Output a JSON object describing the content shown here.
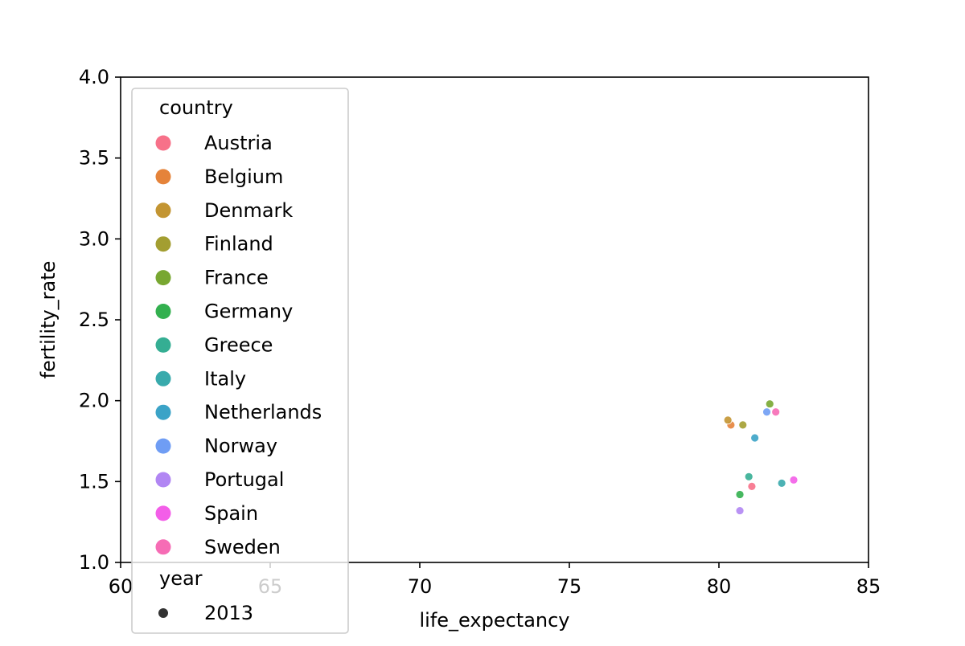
{
  "chart_data": {
    "type": "scatter",
    "xlabel": "life_expectancy",
    "ylabel": "fertility_rate",
    "xlim": [
      60,
      85
    ],
    "ylim": [
      1.0,
      4.0
    ],
    "xticks": [
      "60",
      "65",
      "70",
      "75",
      "80",
      "85"
    ],
    "yticks": [
      "1.0",
      "1.5",
      "2.0",
      "2.5",
      "3.0",
      "3.5",
      "4.0"
    ],
    "grid": false,
    "legend": {
      "placement": "upper-left",
      "hue_title": "country",
      "size_title": "year",
      "size_entries": [
        "2013"
      ]
    },
    "series": [
      {
        "name": "Austria",
        "color": "#f77189",
        "x": 81.1,
        "y": 1.47
      },
      {
        "name": "Belgium",
        "color": "#e5833a",
        "x": 80.4,
        "y": 1.85
      },
      {
        "name": "Denmark",
        "color": "#c39532",
        "x": 80.3,
        "y": 1.88
      },
      {
        "name": "Finland",
        "color": "#a39e31",
        "x": 80.8,
        "y": 1.85
      },
      {
        "name": "France",
        "color": "#78a731",
        "x": 81.7,
        "y": 1.98
      },
      {
        "name": "Germany",
        "color": "#33b04f",
        "x": 80.7,
        "y": 1.42
      },
      {
        "name": "Greece",
        "color": "#35ae93",
        "x": 81.0,
        "y": 1.53
      },
      {
        "name": "Italy",
        "color": "#38aaac",
        "x": 82.1,
        "y": 1.49
      },
      {
        "name": "Netherlands",
        "color": "#3ba3c7",
        "x": 81.2,
        "y": 1.77
      },
      {
        "name": "Norway",
        "color": "#6f9df4",
        "x": 81.6,
        "y": 1.93
      },
      {
        "name": "Portugal",
        "color": "#b186f3",
        "x": 80.7,
        "y": 1.32
      },
      {
        "name": "Spain",
        "color": "#f35ee8",
        "x": 82.5,
        "y": 1.51
      },
      {
        "name": "Sweden",
        "color": "#f66cb5",
        "x": 81.9,
        "y": 1.93
      }
    ]
  }
}
